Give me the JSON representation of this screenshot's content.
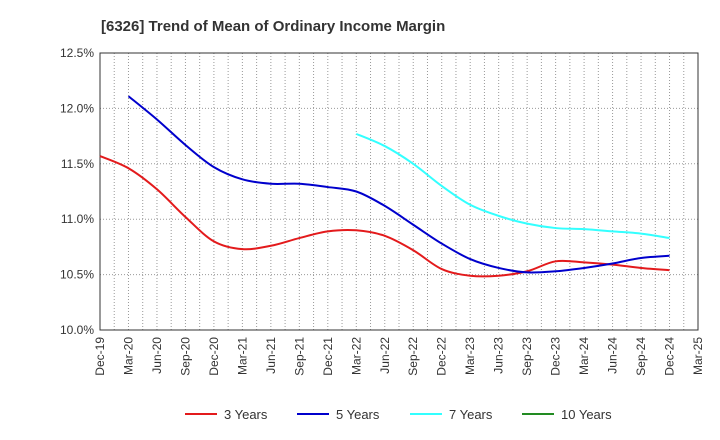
{
  "chart_data": {
    "type": "line",
    "title": "[6326]  Trend of Mean of Ordinary Income Margin",
    "xlabel": "",
    "ylabel": "",
    "x": [
      "Dec-19",
      "Mar-20",
      "Jun-20",
      "Sep-20",
      "Dec-20",
      "Mar-21",
      "Jun-21",
      "Sep-21",
      "Dec-21",
      "Mar-22",
      "Jun-22",
      "Sep-22",
      "Dec-22",
      "Mar-23",
      "Jun-23",
      "Sep-23",
      "Dec-23",
      "Mar-24",
      "Jun-24",
      "Sep-24",
      "Dec-24",
      "Mar-25"
    ],
    "ylim": [
      10.0,
      12.5
    ],
    "yticks": [
      10.0,
      10.5,
      11.0,
      11.5,
      12.0,
      12.5
    ],
    "ytick_labels": [
      "10.0%",
      "10.5%",
      "11.0%",
      "11.5%",
      "12.0%",
      "12.5%"
    ],
    "grid": true,
    "legend_position": "bottom",
    "series": [
      {
        "name": "3 Years",
        "color": "#e31a1c",
        "points": [
          [
            "Dec-19",
            11.57
          ],
          [
            "Mar-20",
            11.46
          ],
          [
            "Jun-20",
            11.27
          ],
          [
            "Sep-20",
            11.02
          ],
          [
            "Dec-20",
            10.8
          ],
          [
            "Mar-21",
            10.73
          ],
          [
            "Jun-21",
            10.76
          ],
          [
            "Sep-21",
            10.83
          ],
          [
            "Dec-21",
            10.89
          ],
          [
            "Mar-22",
            10.9
          ],
          [
            "Jun-22",
            10.85
          ],
          [
            "Sep-22",
            10.72
          ],
          [
            "Dec-22",
            10.55
          ],
          [
            "Mar-23",
            10.49
          ],
          [
            "Jun-23",
            10.49
          ],
          [
            "Sep-23",
            10.53
          ],
          [
            "Dec-23",
            10.62
          ],
          [
            "Mar-24",
            10.61
          ],
          [
            "Jun-24",
            10.59
          ],
          [
            "Sep-24",
            10.56
          ],
          [
            "Dec-24",
            10.54
          ]
        ]
      },
      {
        "name": "5 Years",
        "color": "#0000cc",
        "points": [
          [
            "Mar-20",
            12.11
          ],
          [
            "Jun-20",
            11.9
          ],
          [
            "Sep-20",
            11.67
          ],
          [
            "Dec-20",
            11.47
          ],
          [
            "Mar-21",
            11.36
          ],
          [
            "Jun-21",
            11.32
          ],
          [
            "Sep-21",
            11.32
          ],
          [
            "Dec-21",
            11.29
          ],
          [
            "Mar-22",
            11.25
          ],
          [
            "Jun-22",
            11.12
          ],
          [
            "Sep-22",
            10.95
          ],
          [
            "Dec-22",
            10.78
          ],
          [
            "Mar-23",
            10.64
          ],
          [
            "Jun-23",
            10.56
          ],
          [
            "Sep-23",
            10.52
          ],
          [
            "Dec-23",
            10.53
          ],
          [
            "Mar-24",
            10.56
          ],
          [
            "Jun-24",
            10.6
          ],
          [
            "Sep-24",
            10.65
          ],
          [
            "Dec-24",
            10.67
          ]
        ]
      },
      {
        "name": "7 Years",
        "color": "#33ffff",
        "points": [
          [
            "Mar-22",
            11.77
          ],
          [
            "Jun-22",
            11.66
          ],
          [
            "Sep-22",
            11.5
          ],
          [
            "Dec-22",
            11.3
          ],
          [
            "Mar-23",
            11.13
          ],
          [
            "Jun-23",
            11.03
          ],
          [
            "Sep-23",
            10.96
          ],
          [
            "Dec-23",
            10.92
          ],
          [
            "Mar-24",
            10.91
          ],
          [
            "Jun-24",
            10.89
          ],
          [
            "Sep-24",
            10.87
          ],
          [
            "Dec-24",
            10.83
          ]
        ]
      },
      {
        "name": "10 Years",
        "color": "#228b22",
        "points": []
      }
    ]
  }
}
